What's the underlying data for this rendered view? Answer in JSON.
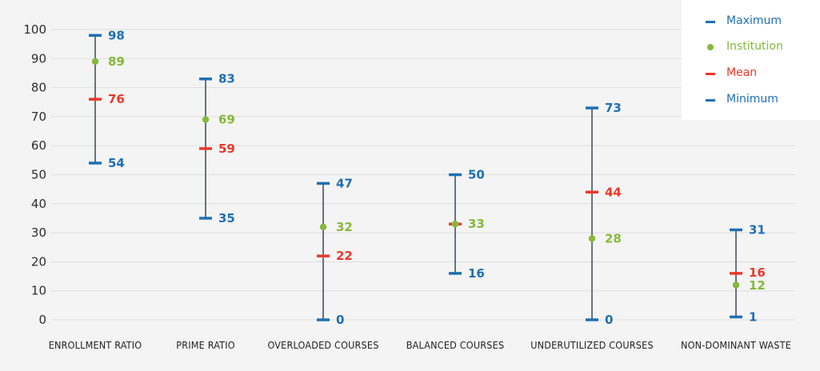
{
  "colors": {
    "background": "#f4f4f4",
    "grid": "#dedede",
    "whisker": "#3d4758",
    "maximum": "#1f6fb2",
    "minimum": "#1f6fb2",
    "mean": "#e8392a",
    "institution": "#86b83a"
  },
  "legend": {
    "items": [
      {
        "label": "Maximum",
        "marker": "dash",
        "color": "#1f6fb2"
      },
      {
        "label": "Institution",
        "marker": "dot",
        "color": "#86b83a"
      },
      {
        "label": "Mean",
        "marker": "dash",
        "color": "#e8392a"
      },
      {
        "label": "Minimum",
        "marker": "dash",
        "color": "#1f6fb2"
      }
    ]
  },
  "chart_data": {
    "type": "range",
    "categories": [
      "ENROLLMENT RATIO",
      "PRIME RATIO",
      "OVERLOADED COURSES",
      "BALANCED COURSES",
      "UNDERUTILIZED COURSES",
      "NON-DOMINANT WASTE"
    ],
    "series": [
      {
        "name": "Maximum",
        "values": [
          98,
          83,
          47,
          50,
          73,
          31
        ]
      },
      {
        "name": "Institution",
        "values": [
          89,
          69,
          32,
          33,
          28,
          12
        ]
      },
      {
        "name": "Mean",
        "values": [
          76,
          59,
          22,
          33,
          44,
          16
        ]
      },
      {
        "name": "Minimum",
        "values": [
          54,
          35,
          0,
          16,
          0,
          1
        ]
      }
    ],
    "ylim": [
      0,
      100
    ],
    "yticks": [
      0,
      10,
      20,
      30,
      40,
      50,
      60,
      70,
      80,
      90,
      100
    ],
    "grid": true,
    "legend_position": "top-right"
  }
}
